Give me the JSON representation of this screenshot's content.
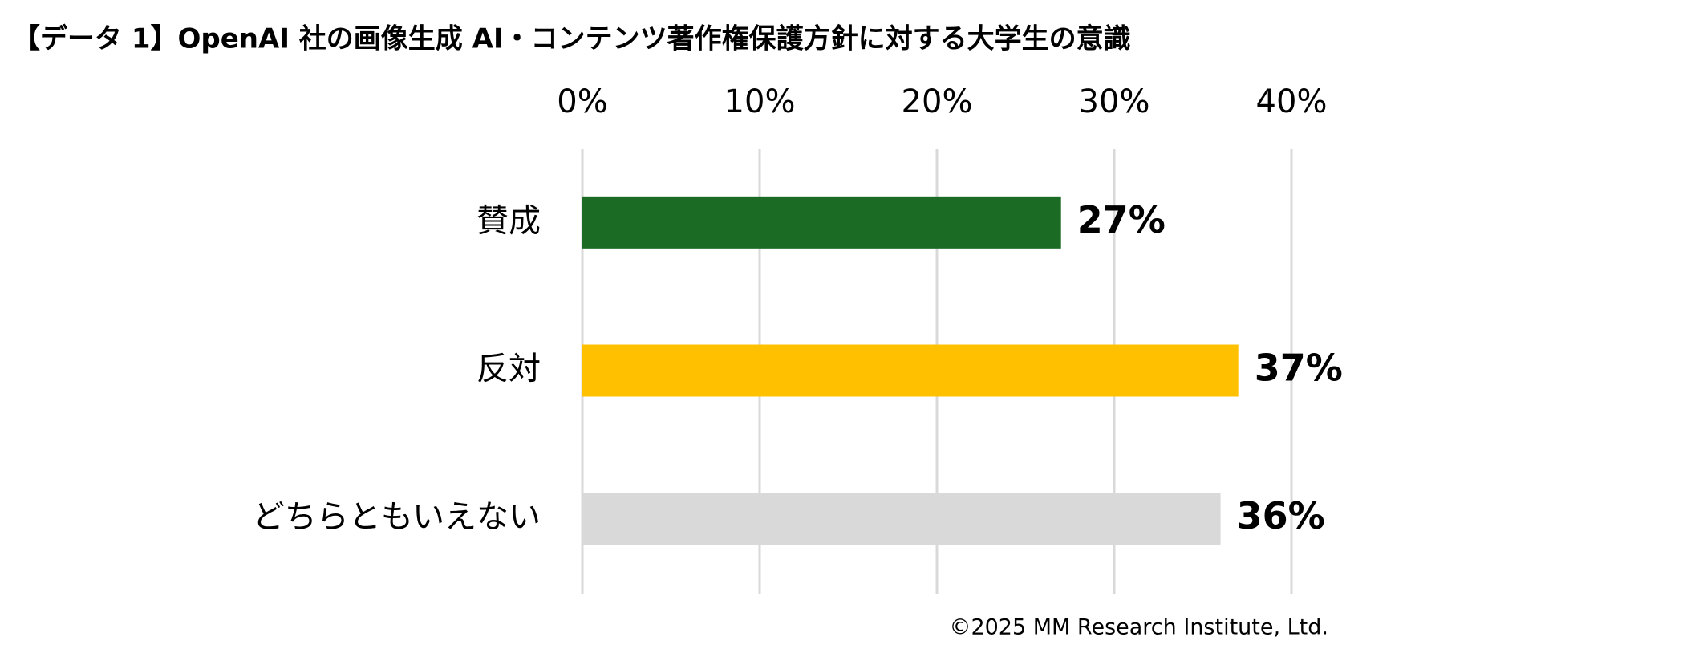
{
  "chart_data": {
    "type": "hbar",
    "title": "【データ 1】OpenAI 社の画像生成 AI・コンテンツ著作権保護方針に対する大学生の意識",
    "categories": [
      "賛成",
      "反対",
      "どちらともいえない"
    ],
    "values": [
      27,
      37,
      36
    ],
    "value_labels": [
      "27%",
      "37%",
      "36%"
    ],
    "colors": [
      "#1b6b24",
      "#ffc000",
      "#d9d9d9"
    ],
    "xlim": [
      0,
      40
    ],
    "xticks": [
      {
        "value": 0,
        "label": "0%"
      },
      {
        "value": 10,
        "label": "10%"
      },
      {
        "value": 20,
        "label": "20%"
      },
      {
        "value": 30,
        "label": "30%"
      },
      {
        "value": 40,
        "label": "40%"
      }
    ],
    "grid": true,
    "note": "©2025  MM Research Institute, Ltd."
  }
}
